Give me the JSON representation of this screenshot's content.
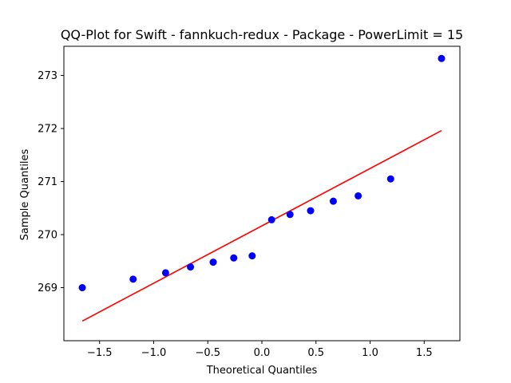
{
  "chart_data": {
    "type": "scatter",
    "title": "QQ-Plot for Swift - fannkuch-redux - Package - PowerLimit = 15",
    "xlabel": "Theoretical Quantiles",
    "ylabel": "Sample Quantiles",
    "xlim": [
      -1.83,
      1.83
    ],
    "ylim": [
      268.0,
      273.55
    ],
    "xticks": [
      -1.5,
      -1.0,
      -0.5,
      0.0,
      0.5,
      1.0,
      1.5
    ],
    "xtick_labels": [
      "−1.5",
      "−1.0",
      "−0.5",
      "0.0",
      "0.5",
      "1.0",
      "1.5"
    ],
    "yticks": [
      269,
      270,
      271,
      272,
      273
    ],
    "ytick_labels": [
      "269",
      "270",
      "271",
      "272",
      "273"
    ],
    "grid": false,
    "points": {
      "color": "#0000ff",
      "x": [
        -1.66,
        -1.19,
        -0.89,
        -0.66,
        -0.45,
        -0.26,
        -0.09,
        0.09,
        0.26,
        0.45,
        0.66,
        0.89,
        1.19,
        1.66
      ],
      "y": [
        269.0,
        269.16,
        269.28,
        269.39,
        269.48,
        269.56,
        269.6,
        270.28,
        270.38,
        270.45,
        270.63,
        270.73,
        271.05,
        273.32
      ]
    },
    "fit_line": {
      "color": "#ff0000",
      "x": [
        -1.66,
        1.66
      ],
      "y": [
        268.37,
        271.96
      ]
    }
  }
}
